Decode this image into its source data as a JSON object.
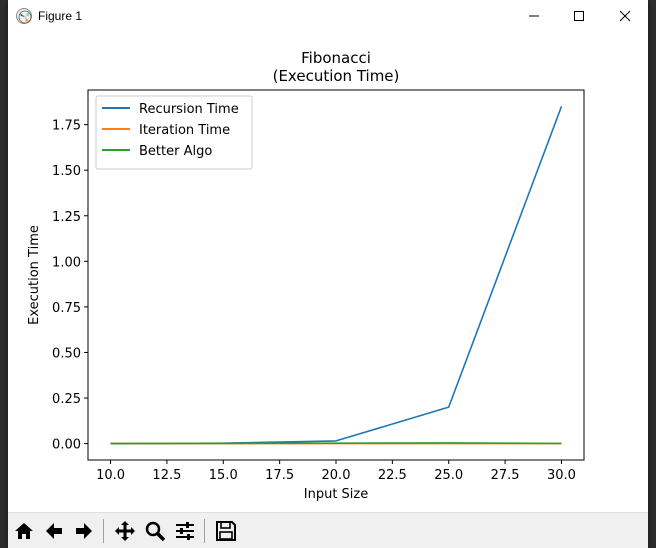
{
  "window": {
    "title": "Figure 1"
  },
  "chart_data": {
    "type": "line",
    "title_line1": "Fibonacci",
    "title_line2": "(Execution Time)",
    "xlabel": "Input Size",
    "ylabel": "Execution Time",
    "xlim": [
      9.0,
      31.0
    ],
    "ylim": [
      -0.09,
      1.94
    ],
    "xticks": [
      10.0,
      12.5,
      15.0,
      17.5,
      20.0,
      22.5,
      25.0,
      27.5,
      30.0
    ],
    "xtick_labels": [
      "10.0",
      "12.5",
      "15.0",
      "17.5",
      "20.0",
      "22.5",
      "25.0",
      "27.5",
      "30.0"
    ],
    "yticks": [
      0.0,
      0.25,
      0.5,
      0.75,
      1.0,
      1.25,
      1.5,
      1.75
    ],
    "ytick_labels": [
      "0.00",
      "0.25",
      "0.50",
      "0.75",
      "1.00",
      "1.25",
      "1.50",
      "1.75"
    ],
    "x": [
      10,
      15,
      20,
      25,
      30
    ],
    "series": [
      {
        "name": "Recursion Time",
        "color": "#1f77b4",
        "values": [
          0.0,
          0.002,
          0.015,
          0.2,
          1.85
        ]
      },
      {
        "name": "Iteration Time",
        "color": "#ff7f0e",
        "values": [
          0.0,
          0.0,
          0.0,
          0.0,
          0.0
        ]
      },
      {
        "name": "Better Algo",
        "color": "#2ca02c",
        "values": [
          0.0,
          0.001,
          0.002,
          0.004,
          0.001
        ]
      }
    ],
    "legend_position": "upper-left",
    "grid": false
  },
  "toolbar": {
    "buttons": [
      {
        "icon": "home-icon"
      },
      {
        "icon": "back-arrow-icon"
      },
      {
        "icon": "forward-arrow-icon"
      },
      {
        "icon": "pan-icon"
      },
      {
        "icon": "zoom-icon"
      },
      {
        "icon": "configure-subplots-icon"
      },
      {
        "icon": "save-icon"
      }
    ]
  }
}
